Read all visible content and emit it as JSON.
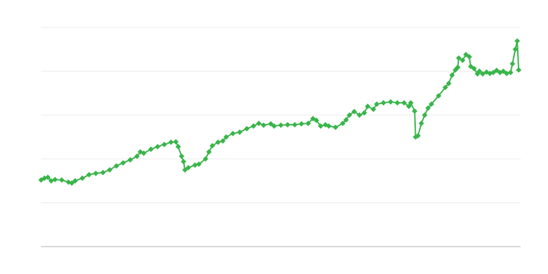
{
  "chart_data": {
    "type": "line",
    "title": "",
    "xlabel": "",
    "ylabel": "",
    "xlim": [
      0,
      100
    ],
    "ylim": [
      0,
      5
    ],
    "grid": true,
    "marker": "diamond",
    "legend": "none",
    "colors": {
      "series": "#39b54a",
      "grid": "#ebebeb",
      "axis": "#b0b0b0"
    },
    "series": [
      {
        "x": [
          0,
          0.7,
          1.4,
          2.1,
          2.9,
          4.3,
          5.7,
          6.4,
          7.1,
          8.6,
          10,
          11.4,
          12.9,
          14.3,
          15.7,
          17.1,
          18.6,
          20,
          20.7,
          21.4,
          22.9,
          24.3,
          25.7,
          27.1,
          28.1,
          28.6,
          29.3,
          29.7,
          30,
          30.7,
          32.1,
          32.9,
          34.3,
          35,
          35.7,
          36.9,
          37.9,
          38.6,
          40,
          41.4,
          42.9,
          44.3,
          45.4,
          46.4,
          47.9,
          48.6,
          50,
          51.4,
          52.9,
          54.3,
          55.7,
          56.7,
          57.4,
          58.3,
          59.3,
          60,
          61.4,
          62.9,
          63.6,
          64.3,
          65.3,
          66.4,
          67.4,
          68.1,
          69.3,
          70,
          71.4,
          72.9,
          74.3,
          75.7,
          76.7,
          77.1,
          77.9,
          78.1,
          78.6,
          79.3,
          80,
          80.7,
          81.4,
          82.9,
          84.3,
          85,
          85.7,
          86.4,
          86.9,
          87.1,
          87.9,
          88.6,
          89.3,
          89.6,
          90.3,
          91,
          91.4,
          92.1,
          92.9,
          93.6,
          94.3,
          95,
          95.7,
          96.4,
          97.1,
          97.9,
          98.3,
          98.9,
          99.3,
          99.6
        ],
        "y": [
          1.52,
          1.56,
          1.58,
          1.5,
          1.53,
          1.52,
          1.47,
          1.45,
          1.5,
          1.56,
          1.64,
          1.67,
          1.69,
          1.75,
          1.84,
          1.91,
          1.98,
          2.06,
          2.16,
          2.13,
          2.22,
          2.28,
          2.33,
          2.38,
          2.39,
          2.28,
          2.06,
          1.94,
          1.75,
          1.8,
          1.86,
          1.88,
          2.0,
          2.16,
          2.3,
          2.38,
          2.41,
          2.5,
          2.58,
          2.61,
          2.69,
          2.75,
          2.81,
          2.77,
          2.8,
          2.75,
          2.77,
          2.78,
          2.78,
          2.8,
          2.81,
          2.92,
          2.88,
          2.75,
          2.78,
          2.75,
          2.72,
          2.81,
          2.89,
          3.0,
          3.08,
          3.0,
          3.05,
          3.2,
          3.13,
          3.25,
          3.28,
          3.3,
          3.28,
          3.28,
          3.2,
          3.28,
          3.09,
          2.5,
          2.53,
          2.81,
          3.0,
          3.16,
          3.25,
          3.44,
          3.63,
          3.72,
          3.91,
          4.03,
          4.09,
          4.3,
          4.25,
          4.38,
          4.33,
          4.11,
          4.06,
          3.94,
          4.0,
          3.94,
          3.98,
          3.95,
          3.97,
          4.02,
          3.97,
          4.0,
          3.95,
          3.97,
          4.17,
          4.5,
          4.69,
          4.03
        ]
      }
    ]
  }
}
